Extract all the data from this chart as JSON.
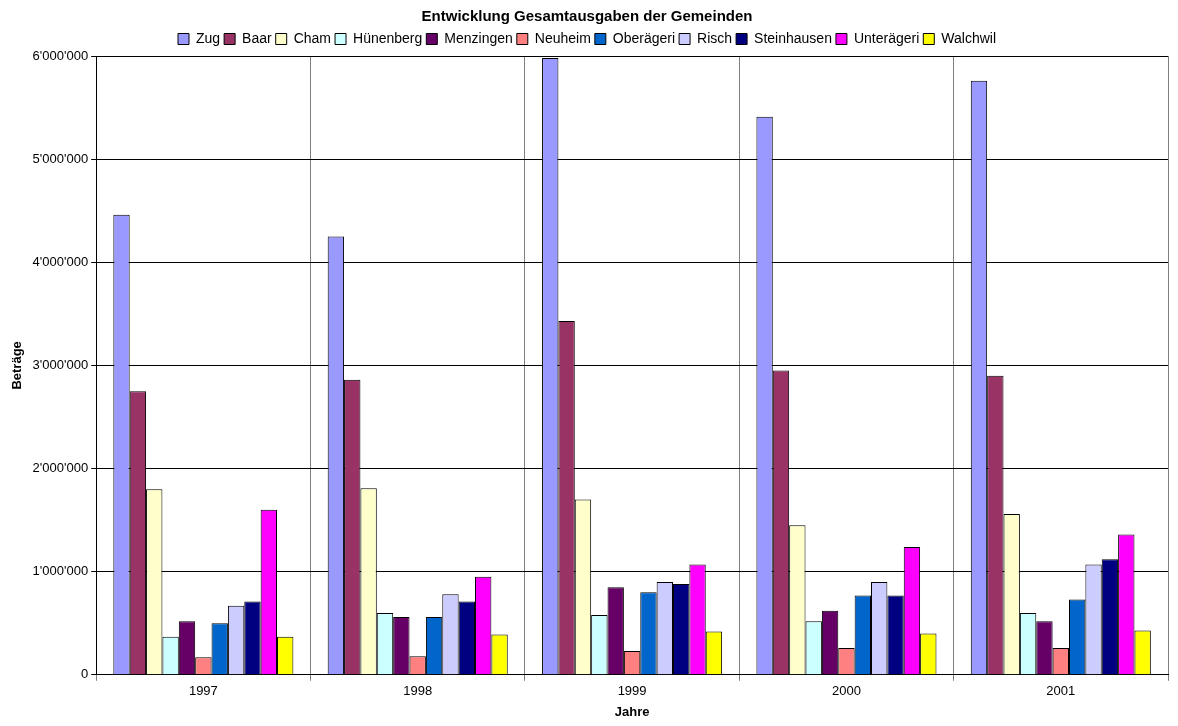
{
  "chart_data": {
    "type": "bar",
    "title": "Entwicklung Gesamtausgaben der Gemeinden",
    "xlabel": "Jahre",
    "ylabel": "Beträge",
    "categories": [
      "1997",
      "1998",
      "1999",
      "2000",
      "2001"
    ],
    "series": [
      {
        "name": "Zug",
        "color": "#9999ff",
        "values": [
          4460000,
          4250000,
          5980000,
          5410000,
          5760000
        ]
      },
      {
        "name": "Baar",
        "color": "#993366",
        "values": [
          2750000,
          2860000,
          3430000,
          2950000,
          2900000
        ]
      },
      {
        "name": "Cham",
        "color": "#ffffcc",
        "values": [
          1800000,
          1810000,
          1700000,
          1450000,
          1560000
        ]
      },
      {
        "name": "Hünenberg",
        "color": "#ccffff",
        "values": [
          370000,
          600000,
          580000,
          520000,
          600000
        ]
      },
      {
        "name": "Menzingen",
        "color": "#660066",
        "values": [
          520000,
          560000,
          850000,
          620000,
          520000
        ]
      },
      {
        "name": "Neuheim",
        "color": "#ff8080",
        "values": [
          170000,
          180000,
          230000,
          260000,
          260000
        ]
      },
      {
        "name": "Oberägeri",
        "color": "#0066cc",
        "values": [
          500000,
          560000,
          800000,
          770000,
          730000
        ]
      },
      {
        "name": "Risch",
        "color": "#ccccff",
        "values": [
          670000,
          780000,
          900000,
          900000,
          1070000
        ]
      },
      {
        "name": "Steinhausen",
        "color": "#000080",
        "values": [
          710000,
          710000,
          880000,
          770000,
          1120000
        ]
      },
      {
        "name": "Unterägeri",
        "color": "#ff00ff",
        "values": [
          1600000,
          950000,
          1070000,
          1240000,
          1360000
        ]
      },
      {
        "name": "Walchwil",
        "color": "#ffff00",
        "values": [
          370000,
          390000,
          420000,
          400000,
          430000
        ]
      }
    ],
    "ylim": [
      0,
      6000000
    ],
    "yticks": [
      {
        "value": 0,
        "label": "0"
      },
      {
        "value": 1000000,
        "label": "1'000'000"
      },
      {
        "value": 2000000,
        "label": "2'000'000"
      },
      {
        "value": 3000000,
        "label": "3'000'000"
      },
      {
        "value": 4000000,
        "label": "4'000'000"
      },
      {
        "value": 5000000,
        "label": "5'000'000"
      },
      {
        "value": 6000000,
        "label": "6'000'000"
      }
    ],
    "grid": true,
    "legend": "top"
  }
}
